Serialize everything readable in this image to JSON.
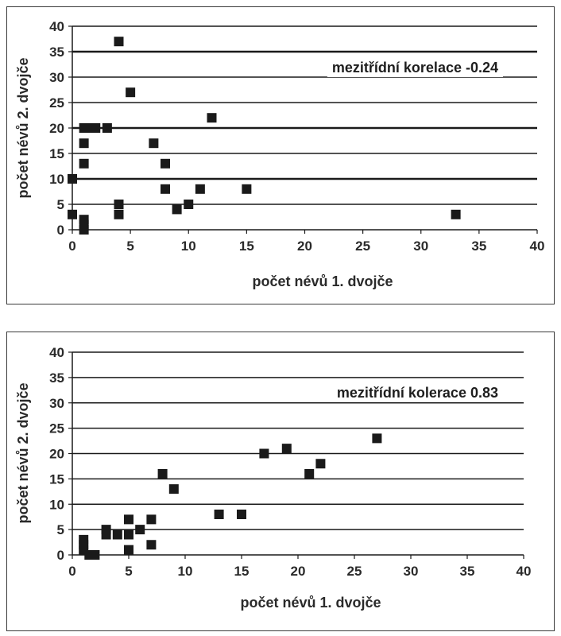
{
  "chart_data": [
    {
      "type": "scatter",
      "xlabel": "počet névů 1. dvojče",
      "ylabel": "počet névů 2. dvojče",
      "annotation": "mezitřídní korelace -0.24",
      "xlim": [
        0,
        40
      ],
      "ylim": [
        0,
        40
      ],
      "xticks": [
        0,
        5,
        10,
        15,
        20,
        25,
        30,
        35,
        40
      ],
      "yticks": [
        0,
        5,
        10,
        15,
        20,
        25,
        30,
        35,
        40
      ],
      "grid": true,
      "legend": "none",
      "marker": "square",
      "marker_color": "#1a1a1a",
      "points": [
        {
          "x": 4,
          "y": 37
        },
        {
          "x": 5,
          "y": 27
        },
        {
          "x": 12,
          "y": 22
        },
        {
          "x": 1,
          "y": 20
        },
        {
          "x": 1.5,
          "y": 20
        },
        {
          "x": 2,
          "y": 20
        },
        {
          "x": 3,
          "y": 20
        },
        {
          "x": 1,
          "y": 17
        },
        {
          "x": 7,
          "y": 17
        },
        {
          "x": 1,
          "y": 13
        },
        {
          "x": 8,
          "y": 13
        },
        {
          "x": 0,
          "y": 10
        },
        {
          "x": 8,
          "y": 8
        },
        {
          "x": 11,
          "y": 8
        },
        {
          "x": 15,
          "y": 8
        },
        {
          "x": 4,
          "y": 5
        },
        {
          "x": 10,
          "y": 5
        },
        {
          "x": 9,
          "y": 4
        },
        {
          "x": 0,
          "y": 3
        },
        {
          "x": 4,
          "y": 3
        },
        {
          "x": 33,
          "y": 3
        },
        {
          "x": 1,
          "y": 2
        },
        {
          "x": 1,
          "y": 1
        },
        {
          "x": 1,
          "y": 0
        }
      ]
    },
    {
      "type": "scatter",
      "xlabel": "počet névů 1. dvojče",
      "ylabel": "počet névů 2. dvojče",
      "annotation": "mezitřídní kolerace 0.83",
      "xlim": [
        0,
        40
      ],
      "ylim": [
        0,
        40
      ],
      "xticks": [
        0,
        5,
        10,
        15,
        20,
        25,
        30,
        35,
        40
      ],
      "yticks": [
        0,
        5,
        10,
        15,
        20,
        25,
        30,
        35,
        40
      ],
      "grid": true,
      "legend": "none",
      "marker": "square",
      "marker_color": "#1a1a1a",
      "points": [
        {
          "x": 27,
          "y": 23
        },
        {
          "x": 19,
          "y": 21
        },
        {
          "x": 17,
          "y": 20
        },
        {
          "x": 22,
          "y": 18
        },
        {
          "x": 21,
          "y": 16
        },
        {
          "x": 8,
          "y": 16
        },
        {
          "x": 9,
          "y": 13
        },
        {
          "x": 13,
          "y": 8
        },
        {
          "x": 15,
          "y": 8
        },
        {
          "x": 5,
          "y": 7
        },
        {
          "x": 7,
          "y": 7
        },
        {
          "x": 3,
          "y": 5
        },
        {
          "x": 6,
          "y": 5
        },
        {
          "x": 3,
          "y": 4
        },
        {
          "x": 4,
          "y": 4
        },
        {
          "x": 5,
          "y": 4
        },
        {
          "x": 1,
          "y": 3
        },
        {
          "x": 1,
          "y": 2
        },
        {
          "x": 7,
          "y": 2
        },
        {
          "x": 1,
          "y": 1
        },
        {
          "x": 5,
          "y": 1
        },
        {
          "x": 2,
          "y": 0
        },
        {
          "x": 1.5,
          "y": 0
        }
      ]
    }
  ]
}
